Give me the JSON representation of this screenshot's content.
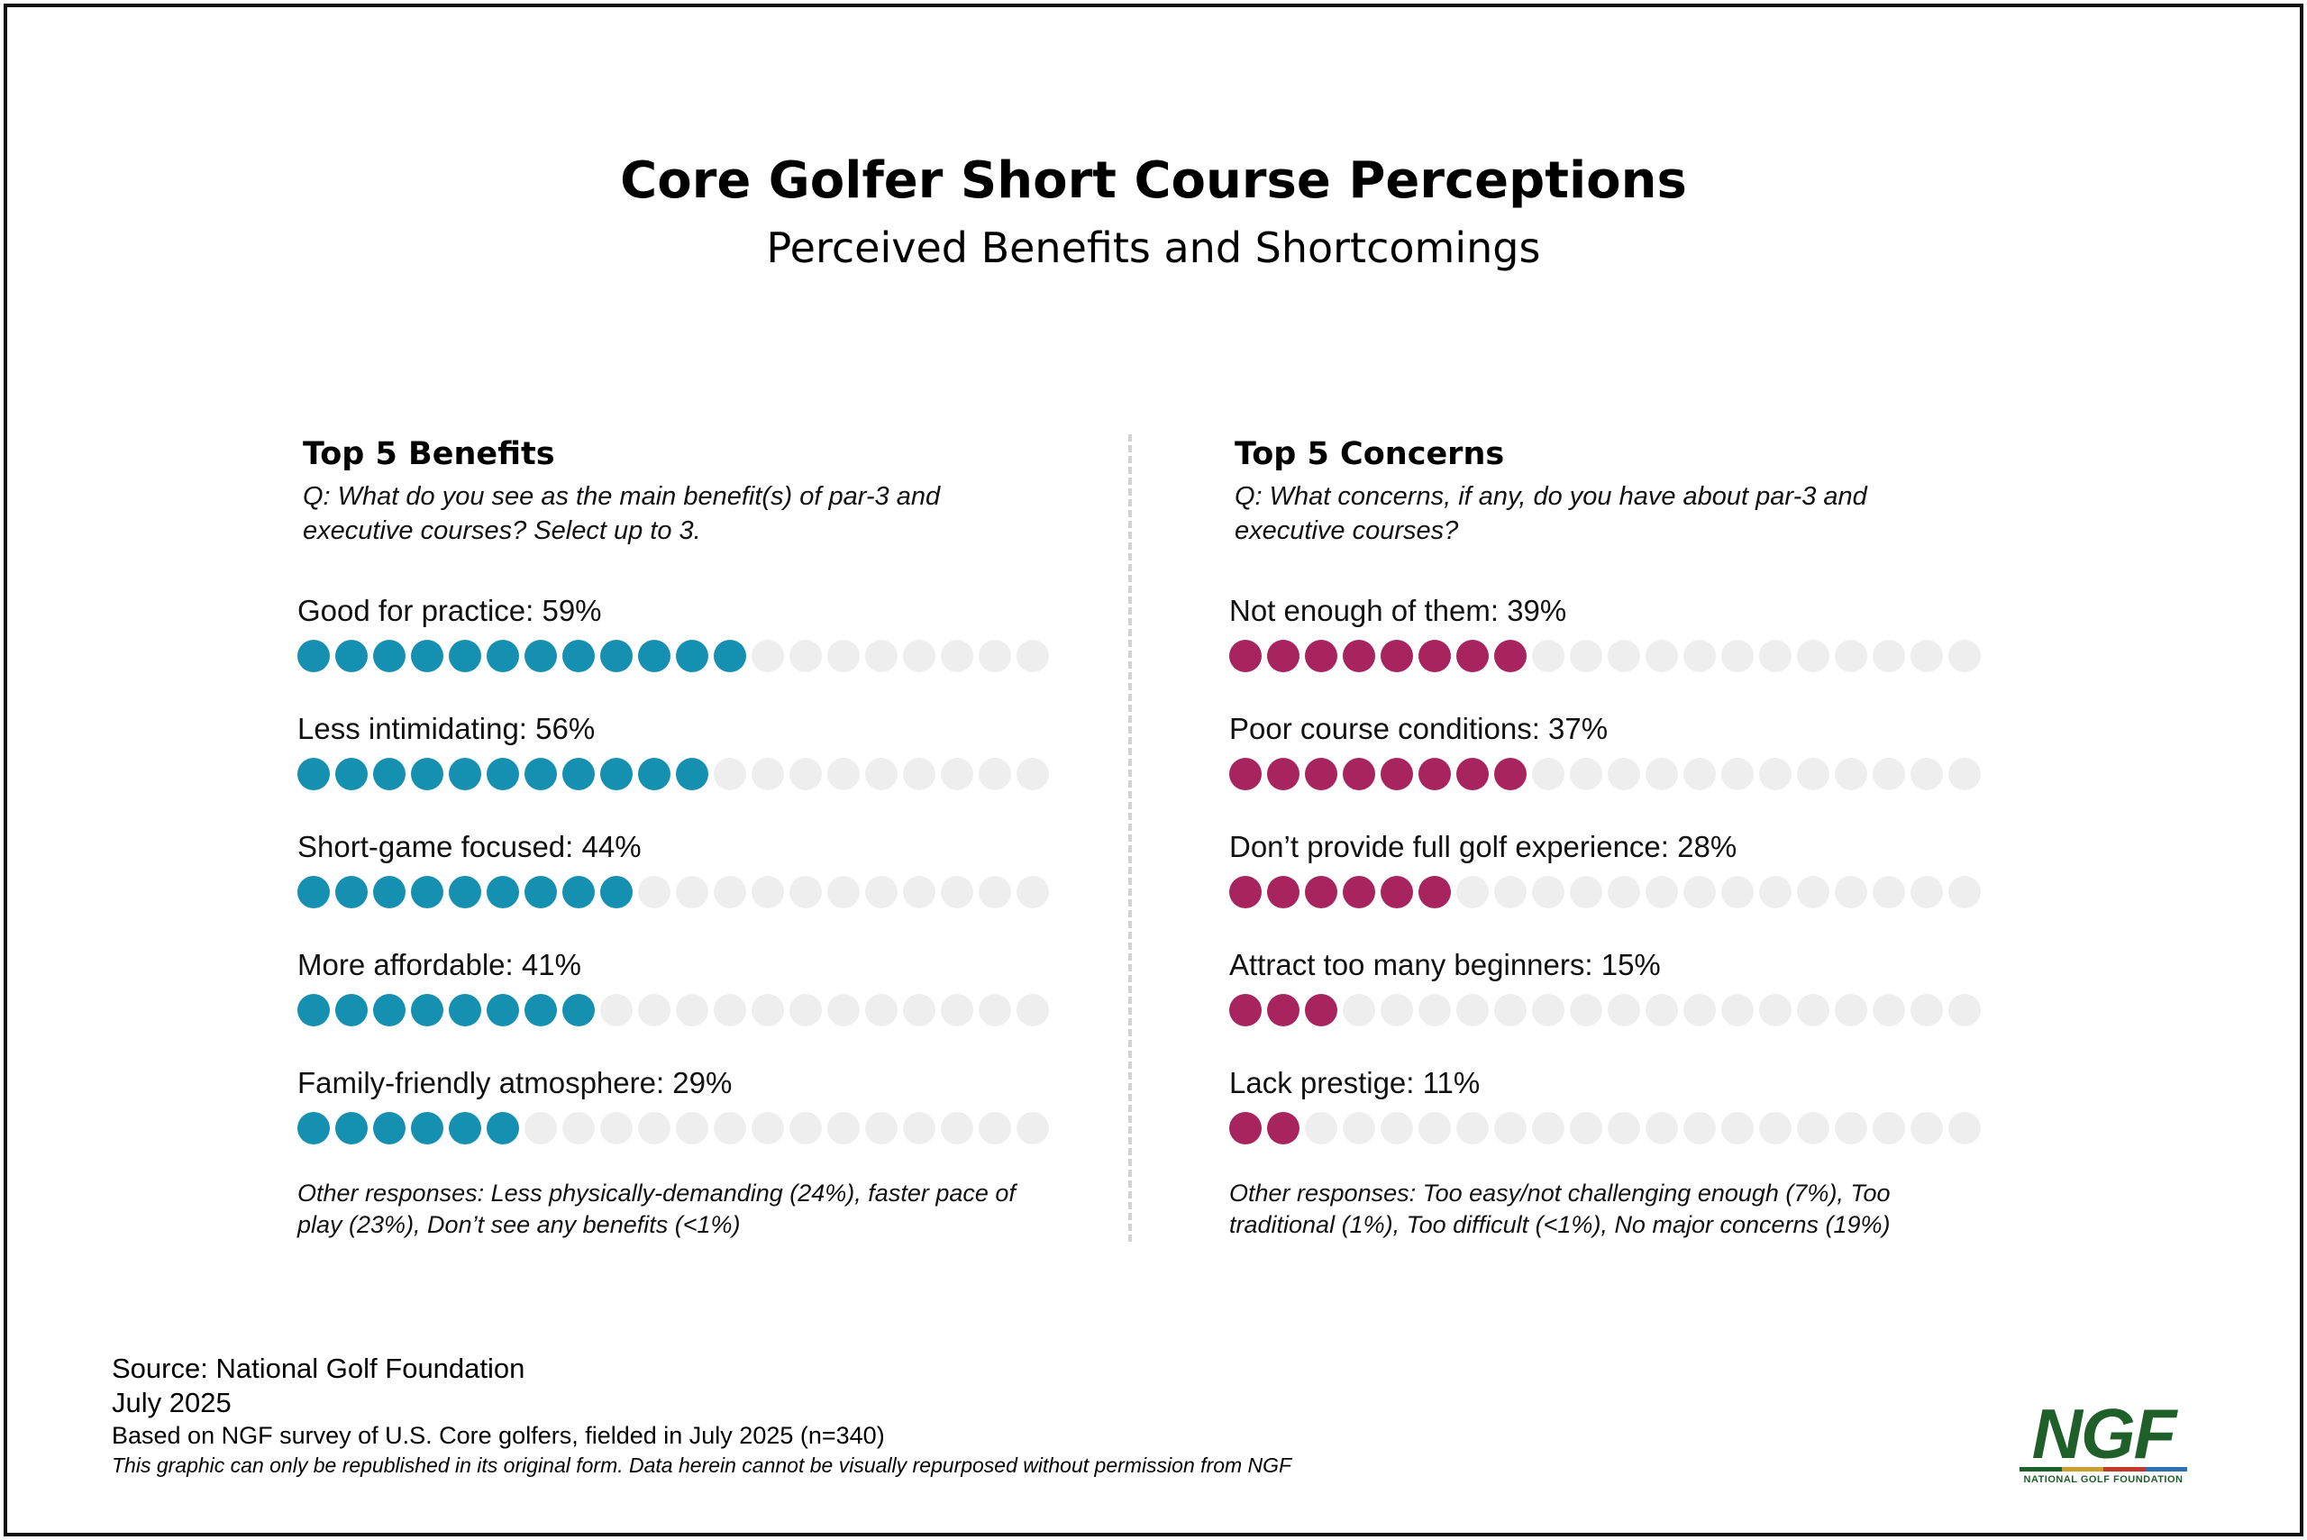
{
  "header": {
    "title": "Core Golfer Short Course Perceptions",
    "subtitle": "Perceived Benefits and Shortcomings"
  },
  "colors": {
    "benefits": "#1590b0",
    "concerns": "#a8245f",
    "empty_dot": "#eeeeee",
    "logo_green": "#1f5f2a",
    "logo_stripe": [
      "#1f5f2a",
      "#c8a030",
      "#c0392b",
      "#2e6fb0"
    ]
  },
  "chart_data": [
    {
      "type": "dot-bar",
      "title": "Top 5 Benefits",
      "question": "Q: What do you see as the main benefit(s) of par-3 and executive courses? Select up to 3.",
      "total_dots": 20,
      "categories": [
        "Good for practice",
        "Less intimidating",
        "Short-game focused",
        "More affordable",
        "Family-friendly atmosphere"
      ],
      "values": [
        59,
        56,
        44,
        41,
        29
      ],
      "filled_dots": [
        12,
        11,
        9,
        8,
        6
      ],
      "labels": [
        "Good for practice: 59%",
        "Less intimidating: 56%",
        "Short-game focused: 44%",
        "More affordable: 41%",
        "Family-friendly atmosphere: 29%"
      ],
      "other": "Other responses: Less physically-demanding (24%), faster pace of play (23%), Don’t see any benefits (<1%)"
    },
    {
      "type": "dot-bar",
      "title": "Top 5 Concerns",
      "question": "Q: What concerns, if any, do you have about par-3 and executive courses?",
      "total_dots": 20,
      "categories": [
        "Not enough of them",
        "Poor course conditions",
        "Don’t provide full golf experience",
        "Attract too many beginners",
        "Lack prestige"
      ],
      "values": [
        39,
        37,
        28,
        15,
        11
      ],
      "filled_dots": [
        8,
        8,
        6,
        3,
        2
      ],
      "labels": [
        "Not enough of them: 39%",
        "Poor course conditions: 37%",
        "Don’t provide full golf experience: 28%",
        "Attract too many beginners: 15%",
        "Lack prestige: 11%"
      ],
      "other": "Other responses: Too easy/not challenging enough (7%), Too traditional (1%), Too difficult (<1%), No major concerns (19%)"
    }
  ],
  "footer": {
    "source": "Source: National Golf Foundation",
    "date": "July 2025",
    "survey": "Based on NGF survey of U.S. Core golfers, fielded in July 2025 (n=340)",
    "disclaimer": "This graphic can only be republished in its original form. Data herein cannot be visually repurposed without permission from NGF"
  },
  "logo": {
    "mark": "NGF",
    "name": "NATIONAL GOLF FOUNDATION"
  }
}
